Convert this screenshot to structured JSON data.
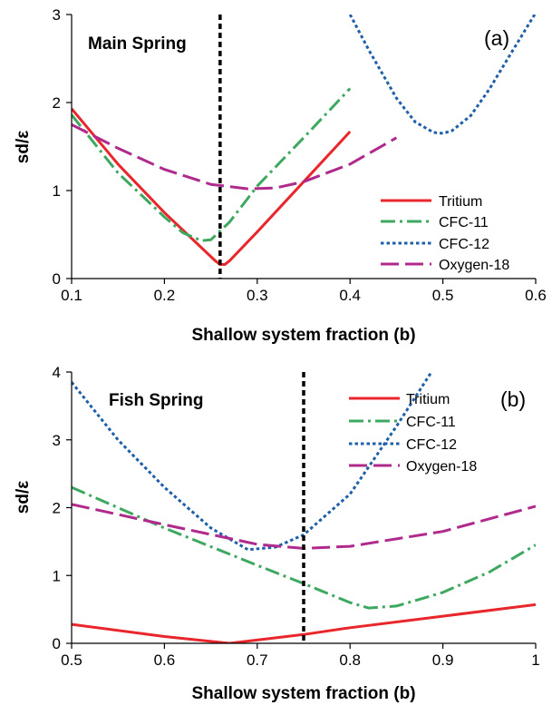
{
  "chart_data": [
    {
      "type": "line",
      "title": "Main Spring",
      "panel_label": "(a)",
      "xlabel": "Shallow system fraction (b)",
      "ylabel": "sd/ε",
      "xlim": [
        0.1,
        0.6
      ],
      "ylim": [
        0,
        3
      ],
      "xticks": [
        0.1,
        0.2,
        0.3,
        0.4,
        0.5,
        0.6
      ],
      "xtick_labels": [
        "0.1",
        "0.2",
        "0.3",
        "0.4",
        "0.5",
        "0.6"
      ],
      "yticks": [
        0,
        1,
        2,
        3
      ],
      "ytick_labels": [
        "0",
        "1",
        "2",
        "3"
      ],
      "legend_position": "lower-right",
      "vline_x": 0.26,
      "series": [
        {
          "name": "Tritium",
          "color": "#e8262b",
          "dash": "solid",
          "x": [
            0.1,
            0.15,
            0.2,
            0.24,
            0.255,
            0.26,
            0.265,
            0.27,
            0.3,
            0.35,
            0.4
          ],
          "y": [
            1.93,
            1.3,
            0.75,
            0.35,
            0.2,
            0.16,
            0.16,
            0.2,
            0.53,
            1.1,
            1.67
          ]
        },
        {
          "name": "CFC-11",
          "color": "#3ea860",
          "dash": "dashdot",
          "x": [
            0.1,
            0.15,
            0.2,
            0.22,
            0.24,
            0.25,
            0.27,
            0.3,
            0.35,
            0.4
          ],
          "y": [
            1.86,
            1.2,
            0.7,
            0.52,
            0.43,
            0.44,
            0.64,
            1.05,
            1.6,
            2.16
          ]
        },
        {
          "name": "CFC-12",
          "color": "#1f5fa8",
          "dash": "dot",
          "x": [
            0.4,
            0.42,
            0.45,
            0.47,
            0.49,
            0.5,
            0.51,
            0.53,
            0.55,
            0.57,
            0.6
          ],
          "y": [
            3.0,
            2.6,
            2.05,
            1.78,
            1.66,
            1.65,
            1.68,
            1.85,
            2.15,
            2.5,
            3.02
          ]
        },
        {
          "name": "Oxygen-18",
          "color": "#b02a8c",
          "dash": "dash",
          "x": [
            0.1,
            0.15,
            0.2,
            0.25,
            0.29,
            0.32,
            0.35,
            0.4,
            0.45
          ],
          "y": [
            1.75,
            1.48,
            1.24,
            1.07,
            1.02,
            1.03,
            1.1,
            1.3,
            1.6
          ]
        }
      ]
    },
    {
      "type": "line",
      "title": "Fish Spring",
      "panel_label": "(b)",
      "xlabel": "Shallow system fraction (b)",
      "ylabel": "sd/ε",
      "xlim": [
        0.5,
        1.0
      ],
      "ylim": [
        0,
        4
      ],
      "xticks": [
        0.5,
        0.6,
        0.7,
        0.8,
        0.9,
        1.0
      ],
      "xtick_labels": [
        "0.5",
        "0.6",
        "0.7",
        "0.8",
        "0.9",
        "1"
      ],
      "yticks": [
        0,
        1,
        2,
        3,
        4
      ],
      "ytick_labels": [
        "0",
        "1",
        "2",
        "3",
        "4"
      ],
      "legend_position": "top-right",
      "vline_x": 0.75,
      "series": [
        {
          "name": "Tritium",
          "color": "#e8262b",
          "dash": "solid",
          "x": [
            0.5,
            0.6,
            0.67,
            0.75,
            0.8,
            0.9,
            1.0
          ],
          "y": [
            0.28,
            0.1,
            0.0,
            0.13,
            0.23,
            0.4,
            0.57
          ]
        },
        {
          "name": "CFC-11",
          "color": "#3ea860",
          "dash": "dashdot",
          "x": [
            0.5,
            0.6,
            0.7,
            0.75,
            0.8,
            0.82,
            0.85,
            0.9,
            0.95,
            1.0
          ],
          "y": [
            2.3,
            1.7,
            1.15,
            0.88,
            0.6,
            0.52,
            0.55,
            0.75,
            1.05,
            1.45
          ]
        },
        {
          "name": "CFC-12",
          "color": "#1f5fa8",
          "dash": "dot",
          "x": [
            0.5,
            0.55,
            0.6,
            0.65,
            0.69,
            0.72,
            0.75,
            0.8,
            0.85,
            0.89
          ],
          "y": [
            3.85,
            3.0,
            2.3,
            1.7,
            1.38,
            1.42,
            1.6,
            2.2,
            3.2,
            4.05
          ]
        },
        {
          "name": "Oxygen-18",
          "color": "#b02a8c",
          "dash": "dash",
          "x": [
            0.5,
            0.6,
            0.7,
            0.75,
            0.8,
            0.9,
            1.0
          ],
          "y": [
            2.05,
            1.75,
            1.46,
            1.4,
            1.43,
            1.65,
            2.02
          ]
        }
      ]
    }
  ]
}
